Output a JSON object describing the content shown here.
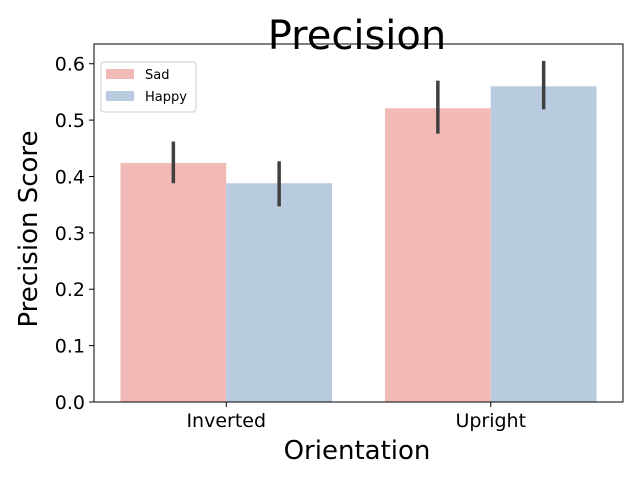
{
  "chart_data": {
    "type": "bar",
    "title": "Precision",
    "xlabel": "Orientation",
    "ylabel": "Precision Score",
    "categories": [
      "Inverted",
      "Upright"
    ],
    "series": [
      {
        "name": "Sad",
        "color": "#f1bab7",
        "values": [
          0.424,
          0.521
        ],
        "error_low": [
          0.388,
          0.476
        ],
        "error_high": [
          0.462,
          0.57
        ]
      },
      {
        "name": "Happy",
        "color": "#b8cbdf",
        "values": [
          0.388,
          0.56
        ],
        "error_low": [
          0.347,
          0.519
        ],
        "error_high": [
          0.427,
          0.605
        ]
      }
    ],
    "ylim": [
      0,
      0.635
    ],
    "yticks": [
      "0.0",
      "0.1",
      "0.2",
      "0.3",
      "0.4",
      "0.5",
      "0.6"
    ],
    "grid": false,
    "legend_position": "top-left",
    "error_bar_color": "#404040"
  }
}
